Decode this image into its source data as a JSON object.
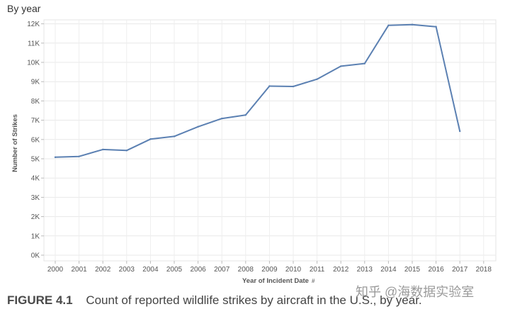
{
  "header": {
    "title": "By year"
  },
  "chart_data": {
    "type": "line",
    "title": "By year",
    "xlabel": "Year of Incident Date",
    "ylabel": "Number of Strikes",
    "x_categories": [
      "2000",
      "2001",
      "2002",
      "2003",
      "2004",
      "2005",
      "2006",
      "2007",
      "2008",
      "2009",
      "2010",
      "2011",
      "2012",
      "2013",
      "2014",
      "2015",
      "2016",
      "2017",
      "2018"
    ],
    "y_ticks": [
      0,
      1000,
      2000,
      3000,
      4000,
      5000,
      6000,
      7000,
      8000,
      9000,
      10000,
      11000,
      12000
    ],
    "y_tick_labels": [
      "0K",
      "1K",
      "2K",
      "3K",
      "4K",
      "5K",
      "6K",
      "7K",
      "8K",
      "9K",
      "10K",
      "11K",
      "12K"
    ],
    "ylim": [
      0,
      12400
    ],
    "grid": true,
    "series": [
      {
        "color": "#5b80b2",
        "x": [
          "2000",
          "2001",
          "2002",
          "2003",
          "2004",
          "2005",
          "2006",
          "2007",
          "2008",
          "2009",
          "2010",
          "2011",
          "2012",
          "2013",
          "2014",
          "2015",
          "2016",
          "2017"
        ],
        "values": [
          5080,
          5120,
          5480,
          5430,
          6020,
          6160,
          6660,
          7090,
          7270,
          8770,
          8750,
          9130,
          9800,
          9940,
          11920,
          11960,
          11850,
          6430
        ]
      }
    ],
    "x_axis_marker": "#"
  },
  "caption": {
    "figure_label": "FIGURE 4.1",
    "text": "Count of reported wildlife strikes by aircraft in the U.S., by year."
  },
  "watermark": {
    "text": "知乎 @海数据实验室"
  }
}
